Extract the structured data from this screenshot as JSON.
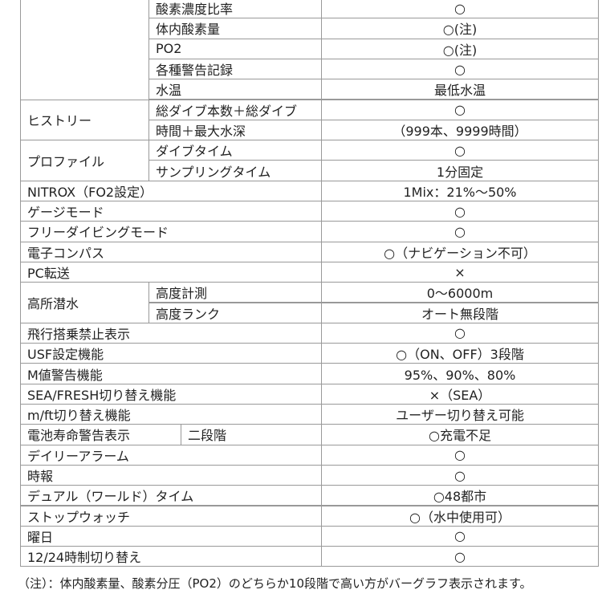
{
  "table": {
    "sections": [
      {
        "items": [
          {
            "sub": "酸素濃度比率",
            "value": "○"
          },
          {
            "sub": "体内酸素量",
            "value": "○(注)"
          },
          {
            "sub": "PO2",
            "value": "○(注)"
          },
          {
            "sub": "各種警告記録",
            "value": "○"
          },
          {
            "sub": "水温",
            "value": "最低水温"
          }
        ]
      },
      {
        "label": "ヒストリー",
        "items": [
          {
            "sub": "総ダイブ本数＋総ダイブ",
            "value": "○"
          },
          {
            "sub": "時間＋最大水深",
            "value": "（999本、9999時間）"
          }
        ]
      },
      {
        "label": "プロファイル",
        "items": [
          {
            "sub": "ダイブタイム",
            "value": "○"
          },
          {
            "sub": "サンプリングタイム",
            "value": "1分固定"
          }
        ]
      },
      {
        "label": "NITROX（FO2設定）",
        "value": "1Mix：21%～50%"
      },
      {
        "label": "ゲージモード",
        "value": "○"
      },
      {
        "label": "フリーダイビングモード",
        "value": "○"
      },
      {
        "label": "電子コンパス",
        "value": "○（ナビゲーション不可）"
      },
      {
        "label": "PC転送",
        "value": "×"
      },
      {
        "label": "高所潜水",
        "items": [
          {
            "sub": "高度計測",
            "value": "0～6000m"
          },
          {
            "sub": "高度ランク",
            "value": "オート無段階"
          }
        ]
      },
      {
        "label": "飛行搭乗禁止表示",
        "value": "○"
      },
      {
        "label": "USF設定機能",
        "value": "○（ON、OFF）3段階"
      },
      {
        "label": "M値警告機能",
        "value": "95%、90%、80%"
      },
      {
        "label": "SEA/FRESH切り替え機能",
        "value": "×（SEA）"
      },
      {
        "label": "m/ft切り替え機能",
        "value": "ユーザー切り替え可能"
      },
      {
        "label": "電池寿命警告表示",
        "items": [
          {
            "sub": "二段階",
            "value": "○充電不足"
          }
        ]
      },
      {
        "label": "デイリーアラーム",
        "value": "○"
      },
      {
        "label": "時報",
        "value": "○"
      },
      {
        "label": "デュアル（ワールド）タイム",
        "value": "○48都市"
      },
      {
        "label": "ストップウォッチ",
        "value": "○（水中使用可）"
      },
      {
        "label": "曜日",
        "value": "○"
      },
      {
        "label": "12/24時制切り替え",
        "value": "○"
      }
    ]
  },
  "footnote": "（注）：体内酸素量、酸素分圧（PO2）のどちらか10段階で高い方がバーグラフ表示されます。"
}
